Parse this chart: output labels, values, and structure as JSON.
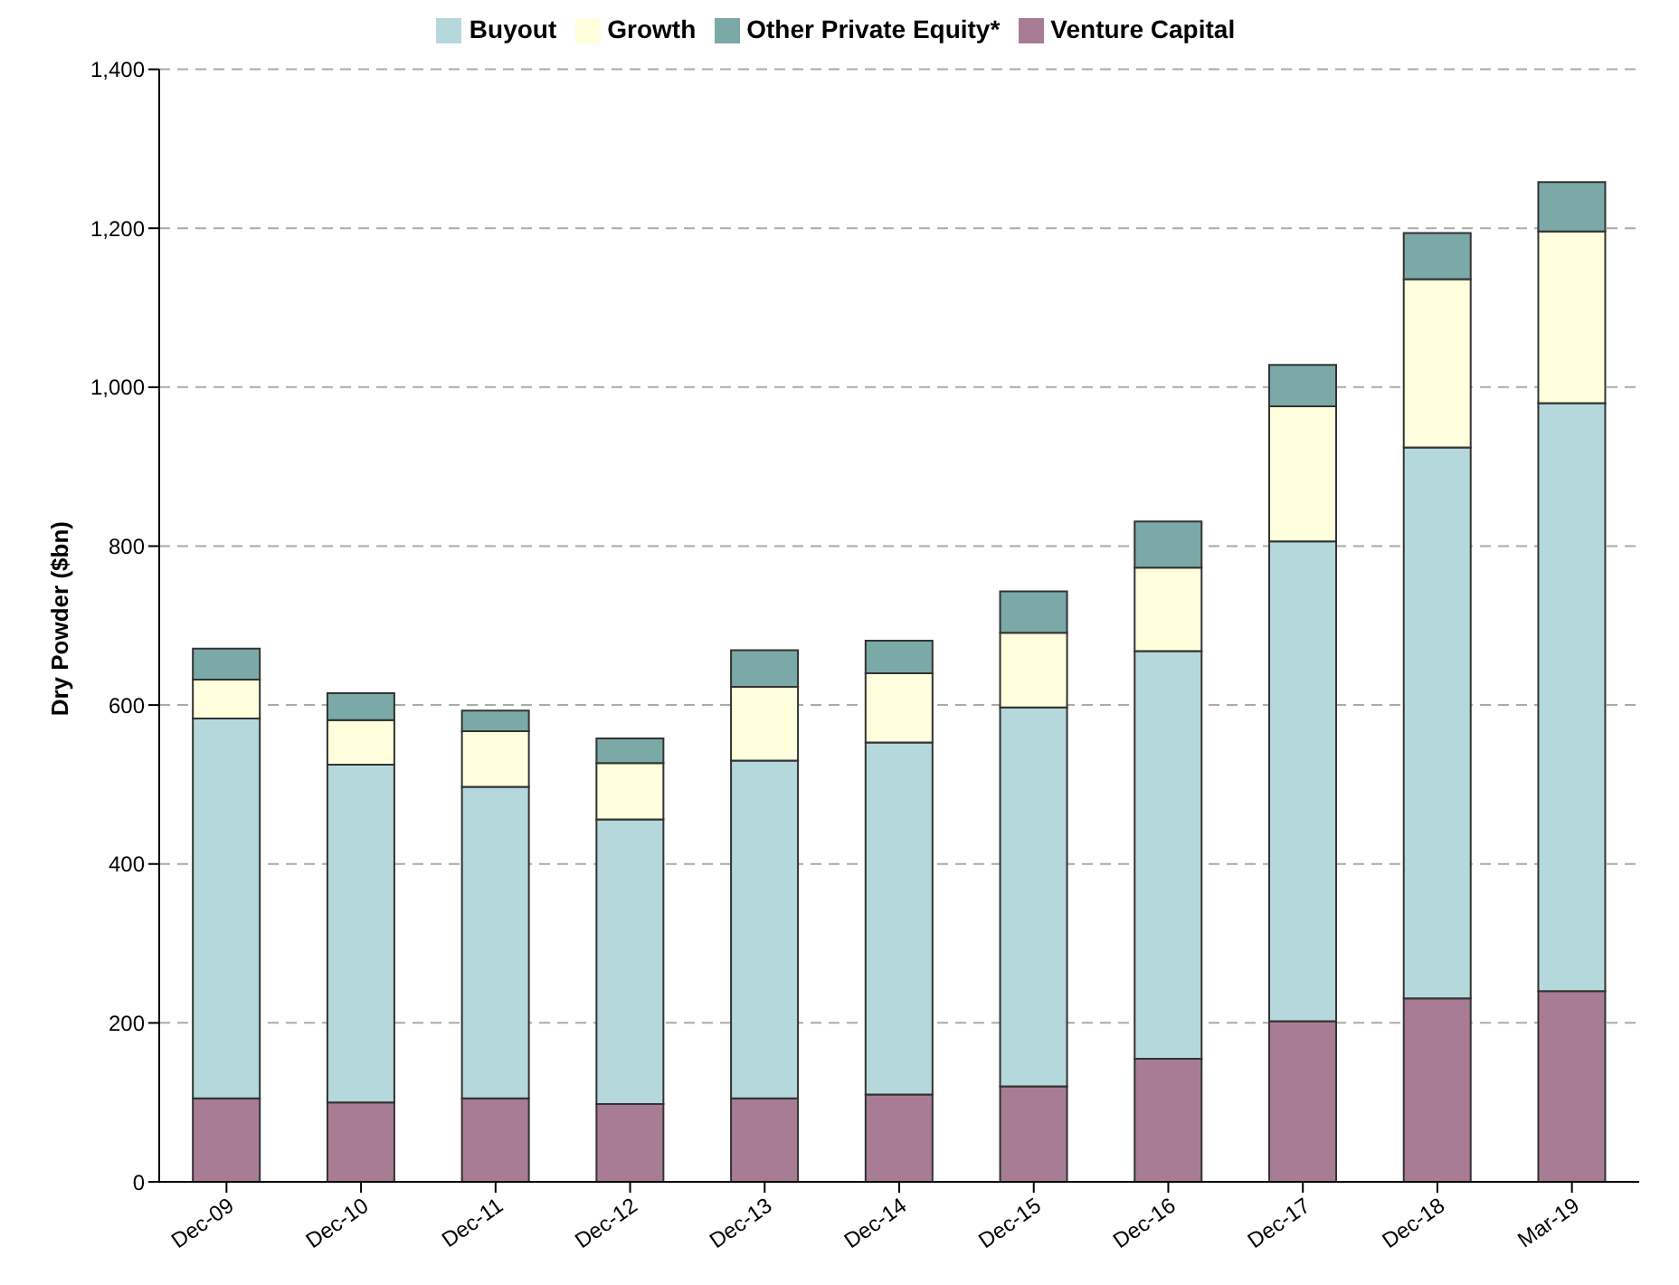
{
  "chart_data": {
    "type": "bar",
    "stacked": true,
    "ylabel": "Dry Powder ($bn)",
    "categories": [
      "Dec-09",
      "Dec-10",
      "Dec-11",
      "Dec-12",
      "Dec-13",
      "Dec-14",
      "Dec-15",
      "Dec-16",
      "Dec-17",
      "Dec-18",
      "Mar-19"
    ],
    "series": [
      {
        "name": "Venture Capital",
        "color": "#a87c94",
        "values": [
          105,
          100,
          105,
          98,
          105,
          110,
          120,
          155,
          202,
          231,
          240
        ]
      },
      {
        "name": "Buyout",
        "color": "#b5d8dc",
        "values": [
          478,
          425,
          392,
          358,
          425,
          443,
          477,
          513,
          604,
          693,
          740
        ]
      },
      {
        "name": "Growth",
        "color": "#ffffdd",
        "values": [
          49,
          56,
          70,
          71,
          93,
          87,
          94,
          105,
          170,
          212,
          216
        ]
      },
      {
        "name": "Other Private Equity*",
        "color": "#7aa9a8",
        "values": [
          39,
          34,
          26,
          31,
          46,
          41,
          52,
          58,
          52,
          58,
          62
        ]
      }
    ],
    "ylim": [
      0,
      1400
    ],
    "yticks": [
      0,
      200,
      400,
      600,
      800,
      {
        "value": 1000,
        "label": "1,000"
      },
      {
        "value": 1200,
        "label": "1,200"
      },
      {
        "value": 1400,
        "label": "1,400"
      }
    ],
    "grid": "y",
    "legend": "top"
  }
}
